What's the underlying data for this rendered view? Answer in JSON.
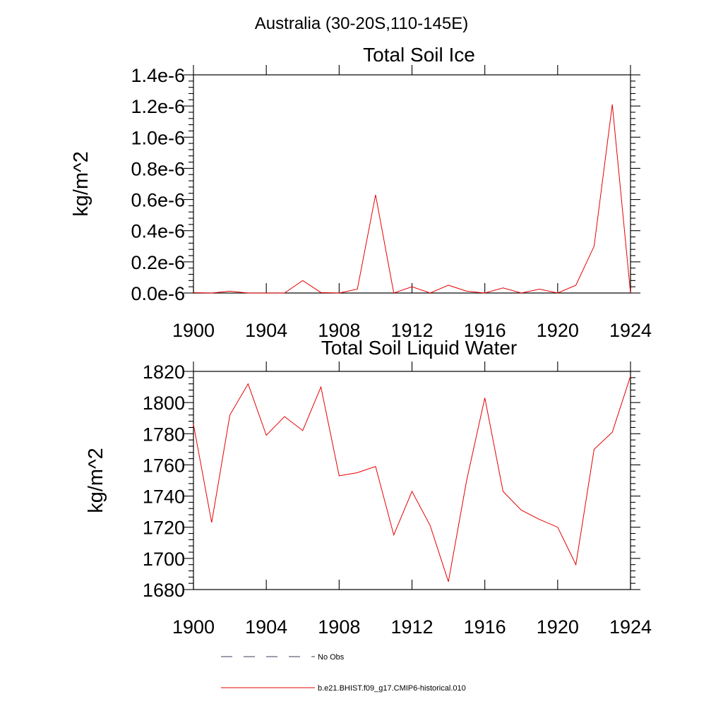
{
  "figure": {
    "title": "Australia (30-20S,110-145E)"
  },
  "chart_data": [
    {
      "type": "line",
      "title": "Total Soil Ice",
      "xlabel": "",
      "ylabel": "kg/m^2",
      "xlim": [
        1900,
        1924
      ],
      "ylim": [
        0,
        1.4e-06
      ],
      "x_ticks": [
        1900,
        1904,
        1908,
        1912,
        1916,
        1920,
        1924
      ],
      "y_ticks": [
        0,
        2e-07,
        4e-07,
        6e-07,
        8e-07,
        1e-06,
        1.2e-06,
        1.4e-06
      ],
      "x_tick_labels": [
        "1900",
        "1904",
        "1908",
        "1912",
        "1916",
        "1920",
        "1924"
      ],
      "y_tick_labels": [
        "0.0e-6",
        "0.2e-6",
        "0.4e-6",
        "0.6e-6",
        "0.8e-6",
        "1.0e-6",
        "1.2e-6",
        "1.4e-6"
      ],
      "grid": false,
      "series": [
        {
          "color": "#e60000",
          "x": [
            1900,
            1901,
            1902,
            1903,
            1904,
            1905,
            1906,
            1907,
            1908,
            1909,
            1910,
            1911,
            1912,
            1913,
            1914,
            1915,
            1916,
            1917,
            1918,
            1919,
            1920,
            1921,
            1922,
            1923,
            1924
          ],
          "values": [
            2e-09,
            0.0,
            1.2e-08,
            0.0,
            0.0,
            0.0,
            8e-08,
            3e-09,
            0.0,
            2.5e-08,
            6.3e-07,
            0.0,
            4e-08,
            0.0,
            5e-08,
            1.2e-08,
            0.0,
            3.3e-08,
            0.0,
            2.5e-08,
            0.0,
            5e-08,
            3e-07,
            1.21e-06,
            0.0
          ]
        }
      ]
    },
    {
      "type": "line",
      "title": "Total Soil Liquid Water",
      "xlabel": "",
      "ylabel": "kg/m^2",
      "xlim": [
        1900,
        1924
      ],
      "ylim": [
        1680,
        1820
      ],
      "x_ticks": [
        1900,
        1904,
        1908,
        1912,
        1916,
        1920,
        1924
      ],
      "y_ticks": [
        1680,
        1700,
        1720,
        1740,
        1760,
        1780,
        1800,
        1820
      ],
      "x_tick_labels": [
        "1900",
        "1904",
        "1908",
        "1912",
        "1916",
        "1920",
        "1924"
      ],
      "y_tick_labels": [
        "1680",
        "1700",
        "1720",
        "1740",
        "1760",
        "1780",
        "1800",
        "1820"
      ],
      "grid": false,
      "series": [
        {
          "color": "#e60000",
          "x": [
            1900,
            1901,
            1902,
            1903,
            1904,
            1905,
            1906,
            1907,
            1908,
            1909,
            1910,
            1911,
            1912,
            1913,
            1914,
            1915,
            1916,
            1917,
            1918,
            1919,
            1920,
            1921,
            1922,
            1923,
            1924
          ],
          "values": [
            1786,
            1723,
            1792,
            1812,
            1779,
            1791,
            1782,
            1810,
            1753,
            1755,
            1759,
            1715,
            1743,
            1721,
            1685,
            1750,
            1803,
            1743,
            1731,
            1725,
            1720,
            1696,
            1770,
            1781,
            1817
          ]
        }
      ]
    }
  ],
  "legend": {
    "placement": "bottom",
    "entries": [
      {
        "label": "No Obs",
        "color": "#3a3a5a",
        "style": "dashed"
      },
      {
        "label": "b.e21.BHIST.f09_g17.CMIP6-historical.010",
        "color": "#e60000",
        "style": "solid"
      }
    ]
  }
}
